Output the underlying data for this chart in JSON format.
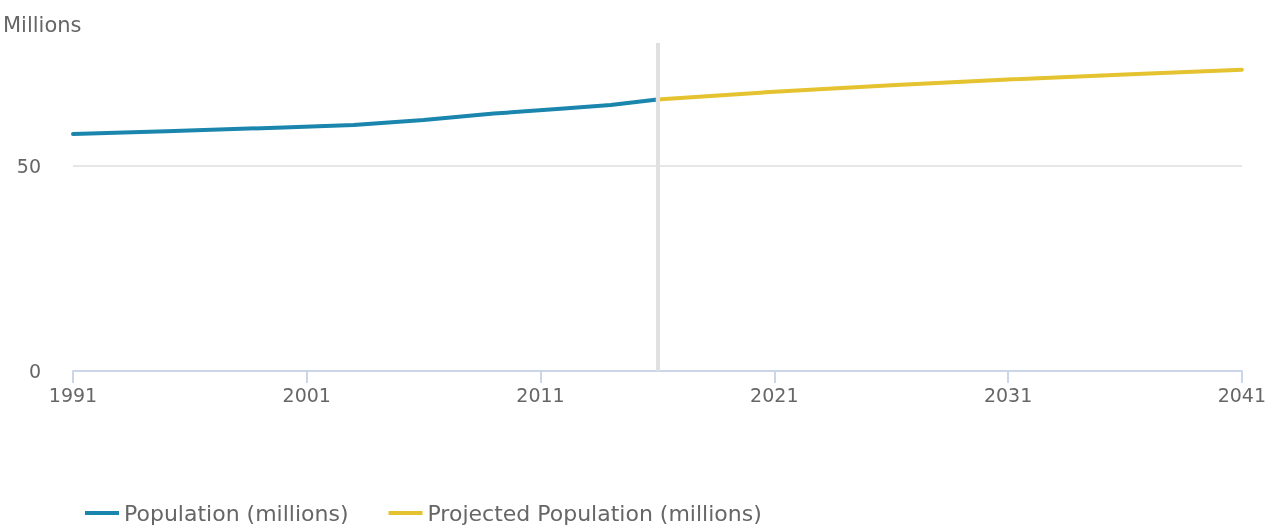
{
  "chart_data": {
    "type": "line",
    "ylabel": "Millions",
    "xlim": [
      1991,
      2041
    ],
    "xticks": [
      1991,
      2001,
      2011,
      2021,
      2031,
      2041
    ],
    "ylim": [
      0,
      80
    ],
    "yticks": [
      0,
      50
    ],
    "series": [
      {
        "name": "Population (millions)",
        "color": "#1a85ad",
        "x": [
          1991,
          1995,
          2000,
          2003,
          2006,
          2009,
          2012,
          2014,
          2016
        ],
        "values": [
          57.8,
          58.5,
          59.4,
          60.0,
          61.2,
          62.8,
          64.0,
          64.9,
          66.2
        ]
      },
      {
        "name": "Projected Population (millions)",
        "color": "#e5c22f",
        "x": [
          2016,
          2021,
          2026,
          2031,
          2036,
          2041
        ],
        "values": [
          66.2,
          68.1,
          69.7,
          71.1,
          72.3,
          73.5
        ]
      }
    ],
    "ref_lines": [
      {
        "axis": "x",
        "value": 2016,
        "color": "#e0e0e0"
      }
    ],
    "grid": "y",
    "legend": "bottom",
    "marker": "none",
    "line_style": "solid"
  }
}
